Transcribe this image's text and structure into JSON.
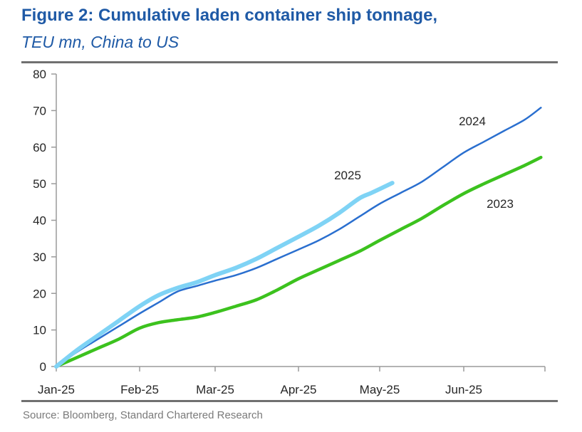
{
  "header": {
    "title": "Figure 2: Cumulative laden container ship tonnage,",
    "subtitle": "TEU mn, China to US"
  },
  "footer": {
    "source": "Source: Bloomberg, Standard Chartered Research"
  },
  "colors": {
    "title": "#1f5aa6",
    "series_2025": "#7fd3f5",
    "series_2024": "#2a6fcf",
    "series_2023": "#3cc21e",
    "axis": "#9a9a9a"
  },
  "chart_data": {
    "type": "line",
    "title": "Figure 2: Cumulative laden container ship tonnage,",
    "subtitle": "TEU mn, China to US",
    "xlabel": "",
    "ylabel": "TEU mn",
    "x_tick_labels": [
      "Jan-25",
      "Feb-25",
      "Mar-25",
      "Apr-25",
      "May-25",
      "Jun-25"
    ],
    "x_unit": "months since Jan-25",
    "xlim": [
      0,
      6
    ],
    "ylim": [
      0,
      80
    ],
    "y_ticks": [
      0,
      10,
      20,
      30,
      40,
      50,
      60,
      70,
      80
    ],
    "grid": false,
    "legend": "inline labels",
    "series": [
      {
        "name": "2025",
        "label_position": "above-end",
        "x": [
          0,
          0.25,
          0.5,
          0.75,
          1.0,
          1.25,
          1.5,
          1.75,
          2.0,
          2.25,
          2.5,
          2.75,
          3.0,
          3.25,
          3.5,
          3.75,
          3.9,
          4.15
        ],
        "y": [
          0,
          4.5,
          8.5,
          12.5,
          16.5,
          19.5,
          21.5,
          23,
          25,
          27,
          29.5,
          32.5,
          35.5,
          38.5,
          42,
          46,
          47.5,
          50.2
        ]
      },
      {
        "name": "2024",
        "label_position": "above-right",
        "x": [
          0,
          0.25,
          0.5,
          0.75,
          1.0,
          1.25,
          1.5,
          1.75,
          2.0,
          2.25,
          2.5,
          2.75,
          3.0,
          3.25,
          3.5,
          3.75,
          4.0,
          4.25,
          4.5,
          4.75,
          5.0,
          5.25,
          5.5,
          5.75,
          5.95
        ],
        "y": [
          0,
          4,
          7.5,
          11,
          14.5,
          17.5,
          20.5,
          22,
          23.5,
          25,
          27,
          29.5,
          32,
          34.5,
          37.5,
          41,
          44.5,
          47.5,
          50.5,
          54.5,
          58.5,
          61.5,
          64.5,
          67.5,
          70.8
        ]
      },
      {
        "name": "2023",
        "label_position": "below-right",
        "x": [
          0,
          0.25,
          0.5,
          0.75,
          1.0,
          1.25,
          1.5,
          1.75,
          2.0,
          2.25,
          2.5,
          2.75,
          3.0,
          3.25,
          3.5,
          3.75,
          4.0,
          4.25,
          4.5,
          4.75,
          5.0,
          5.25,
          5.5,
          5.75,
          5.95
        ],
        "y": [
          0,
          2.5,
          5,
          7.5,
          10.5,
          12,
          12.8,
          13.5,
          14.8,
          16.5,
          18.3,
          21,
          24,
          26.5,
          29,
          31.5,
          34.5,
          37.5,
          40.5,
          44,
          47.3,
          50,
          52.5,
          55,
          57.2
        ]
      }
    ]
  }
}
